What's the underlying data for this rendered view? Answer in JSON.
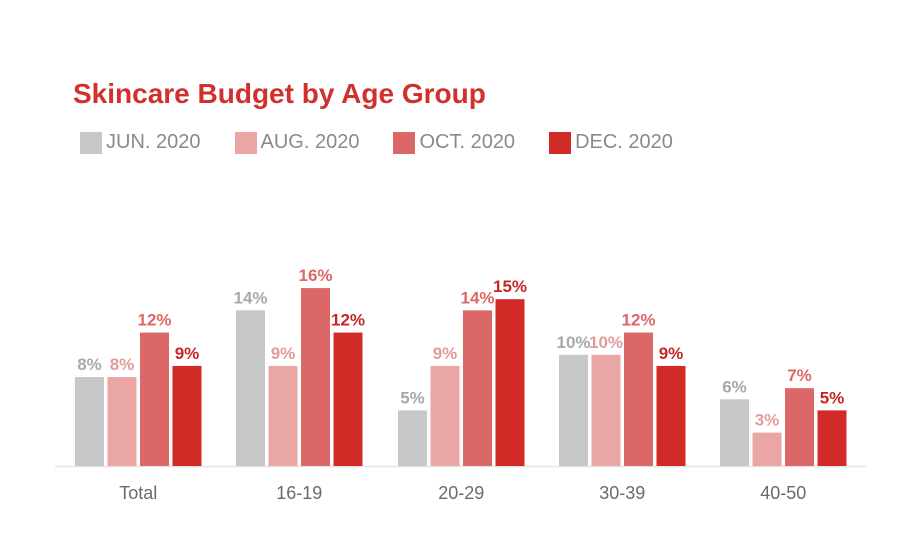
{
  "chart_data": {
    "type": "bar",
    "title": "Skincare Budget by Age Group",
    "categories": [
      "Total",
      "16-19",
      "20-29",
      "30-39",
      "40-50"
    ],
    "series": [
      {
        "name": "JUN. 2020",
        "color": "#c8c8c8",
        "label_color": "#a8a8a8",
        "values": [
          8,
          14,
          5,
          10,
          6
        ]
      },
      {
        "name": "AUG. 2020",
        "color": "#eaa6a5",
        "label_color": "#e39b9a",
        "values": [
          8,
          9,
          9,
          10,
          3
        ]
      },
      {
        "name": "OCT. 2020",
        "color": "#db6866",
        "label_color": "#db6866",
        "values": [
          12,
          16,
          14,
          12,
          7
        ]
      },
      {
        "name": "DEC. 2020",
        "color": "#d12a27",
        "label_color": "#c62724",
        "values": [
          9,
          12,
          15,
          9,
          5
        ]
      }
    ],
    "value_suffix": "%",
    "xlabel": "",
    "ylabel": "",
    "ylim": [
      0,
      16
    ],
    "grid": false,
    "legend_position": "top-left"
  }
}
